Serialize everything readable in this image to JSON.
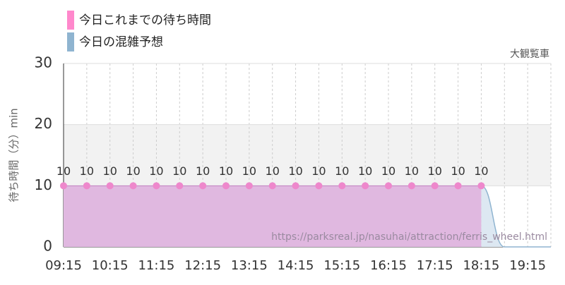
{
  "chart_data": {
    "type": "line",
    "subtitle": "大観覧車",
    "y_label": "待ち時間（分）min",
    "watermark": "https://parksreal.jp/nasuhai/attraction/ferris_wheel.html",
    "categories": [
      "09:15",
      null,
      "10:15",
      null,
      "11:15",
      null,
      "12:15",
      null,
      "13:15",
      null,
      "14:15",
      null,
      "15:15",
      null,
      "16:15",
      null,
      "17:15",
      null,
      "18:15",
      null,
      "19:15",
      null
    ],
    "series": [
      {
        "name": "今日これまでの待ち時間",
        "color": "#ff88cc",
        "values": [
          10,
          10,
          10,
          10,
          10,
          10,
          10,
          10,
          10,
          10,
          10,
          10,
          10,
          10,
          10,
          10,
          10,
          10,
          10,
          null,
          null,
          null
        ]
      },
      {
        "name": "今日の混雑予想",
        "color": "#8fb4d0",
        "values": [
          null,
          null,
          null,
          null,
          null,
          null,
          null,
          null,
          null,
          null,
          null,
          null,
          null,
          null,
          null,
          null,
          null,
          null,
          10,
          0,
          0,
          0
        ]
      }
    ],
    "ylim": [
      0,
      30
    ],
    "yticks": [
      0,
      10,
      20,
      30
    ],
    "grid": true
  }
}
